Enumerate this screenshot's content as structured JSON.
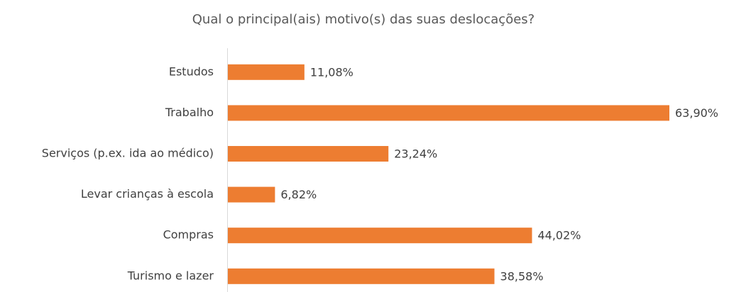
{
  "chart_data": {
    "type": "bar",
    "orientation": "horizontal",
    "title": "Qual o principal(ais) motivo(s) das suas deslocações?",
    "categories": [
      "Estudos",
      "Trabalho",
      "Serviços (p.ex. ida ao médico)",
      "Levar crianças à escola",
      "Compras",
      "Turismo e lazer"
    ],
    "values": [
      11.08,
      63.9,
      23.24,
      6.82,
      44.02,
      38.58
    ],
    "value_labels": [
      "11,08%",
      "63,90%",
      "23,24%",
      "6,82%",
      "44,02%",
      "38,58%"
    ],
    "color": "#ed7d31"
  }
}
